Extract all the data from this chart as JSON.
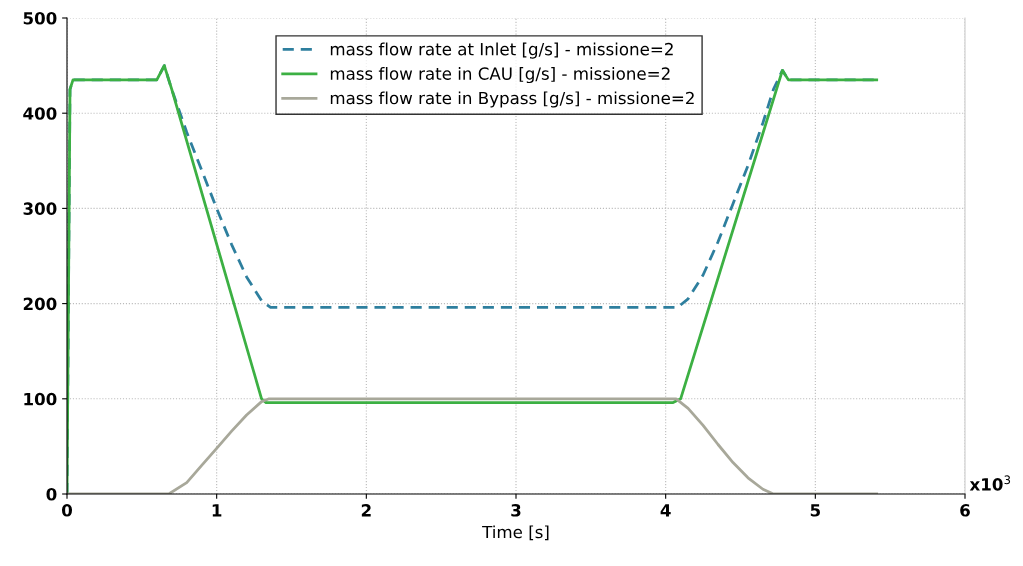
{
  "chart_data": {
    "type": "line",
    "xlabel": "Time [s]",
    "annotations": [
      "x10$^{3}$"
    ],
    "xlim": [
      0,
      6
    ],
    "xticks": [
      0,
      1,
      2,
      3,
      4,
      5,
      6
    ],
    "ylim": [
      0,
      500
    ],
    "yticks": [
      0,
      100,
      200,
      300,
      400,
      500
    ],
    "grid": true,
    "legend": "top",
    "marker": "none",
    "series": [
      {
        "name": "mass flow rate at Inlet [g/s] - missione=2",
        "color": "#2e7f9e",
        "line_style": "dashed",
        "x": [
          0,
          0.02,
          0.04,
          0.6,
          0.65,
          0.7,
          0.8,
          0.9,
          1.0,
          1.1,
          1.2,
          1.3,
          1.36,
          4.08,
          4.15,
          4.25,
          4.35,
          4.45,
          4.55,
          4.65,
          4.72,
          4.78,
          4.82,
          5.41
        ],
        "values": [
          0,
          425,
          435,
          435,
          450,
          425,
          380,
          340,
          300,
          262,
          228,
          203,
          196,
          196,
          205,
          230,
          265,
          305,
          345,
          390,
          425,
          445,
          435,
          435
        ]
      },
      {
        "name": "mass flow rate in CAU [g/s] - missione=2",
        "color": "#3cb043",
        "line_style": "solid",
        "x": [
          0,
          0.02,
          0.04,
          0.6,
          0.65,
          0.7,
          1.3,
          1.33,
          4.05,
          4.1,
          4.78,
          4.82,
          5.41
        ],
        "values": [
          0,
          425,
          435,
          435,
          450,
          425,
          100,
          96,
          96,
          100,
          445,
          435,
          435
        ]
      },
      {
        "name": "mass flow rate in Bypass [g/s] - missione=2",
        "color": "#a8a89a",
        "line_style": "solid",
        "x": [
          0,
          0.68,
          0.8,
          0.9,
          1.0,
          1.1,
          1.2,
          1.3,
          1.35,
          4.07,
          4.15,
          4.25,
          4.35,
          4.45,
          4.55,
          4.65,
          4.72,
          5.41
        ],
        "values": [
          0,
          0,
          12,
          30,
          48,
          66,
          83,
          97,
          100,
          100,
          90,
          72,
          52,
          33,
          17,
          5,
          0,
          0
        ]
      }
    ]
  }
}
